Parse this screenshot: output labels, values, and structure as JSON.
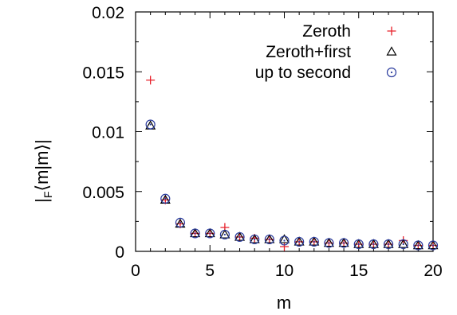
{
  "chart_data": {
    "type": "scatter",
    "title": "",
    "xlabel": "m",
    "ylabel": "|F⟨m|m⟩|",
    "ylabel_parts": {
      "left": "|",
      "sub": "F",
      "right": "⟨m|m⟩|"
    },
    "xlim": [
      0,
      20
    ],
    "ylim": [
      0,
      0.02
    ],
    "xticks": [
      0,
      5,
      10,
      15,
      20
    ],
    "xtick_labels": [
      "0",
      "5",
      "10",
      "15",
      "20"
    ],
    "yticks": [
      0,
      0.005,
      0.01,
      0.015,
      0.02
    ],
    "ytick_labels": [
      "0",
      "0.005",
      "0.01",
      "0.015",
      "0.02"
    ],
    "grid": false,
    "legend_position": "top-right",
    "x": [
      1,
      2,
      3,
      4,
      5,
      6,
      7,
      8,
      9,
      10,
      11,
      12,
      13,
      14,
      15,
      16,
      17,
      18,
      19,
      20
    ],
    "series": [
      {
        "name": "Zeroth",
        "marker": "plus",
        "color": "#e8202a",
        "values": [
          0.0143,
          0.0043,
          0.0023,
          0.0015,
          0.0015,
          0.002,
          0.0012,
          0.0011,
          0.001,
          0.0004,
          0.0008,
          0.0008,
          0.0007,
          0.0007,
          0.0006,
          0.0006,
          0.0006,
          0.0009,
          0.0005,
          0.0005
        ]
      },
      {
        "name": "Zeroth+first",
        "marker": "triangle",
        "color": "#000000",
        "values": [
          0.0105,
          0.0043,
          0.0023,
          0.0015,
          0.0015,
          0.0014,
          0.0012,
          0.001,
          0.001,
          0.001,
          0.0008,
          0.0008,
          0.0007,
          0.0007,
          0.0006,
          0.0006,
          0.0006,
          0.0006,
          0.0005,
          0.0005
        ]
      },
      {
        "name": "up to second",
        "marker": "circle",
        "color": "#2b3c9e",
        "values": [
          0.0106,
          0.0044,
          0.0024,
          0.0015,
          0.0015,
          0.0014,
          0.0012,
          0.001,
          0.001,
          0.0009,
          0.0008,
          0.0008,
          0.0007,
          0.0007,
          0.0006,
          0.0006,
          0.0006,
          0.0006,
          0.0005,
          0.0005
        ]
      }
    ]
  }
}
